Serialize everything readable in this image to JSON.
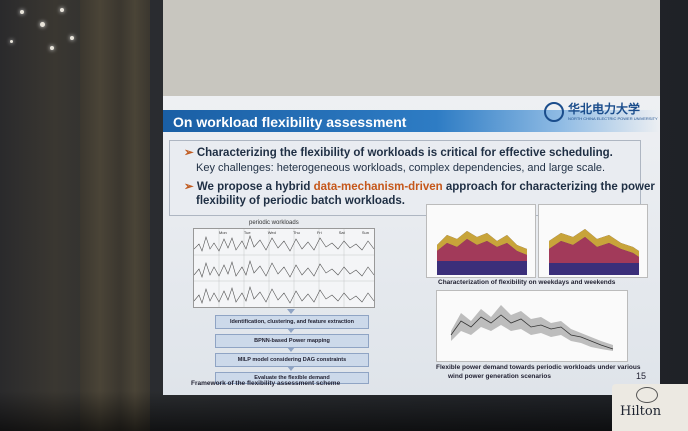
{
  "slide": {
    "title": "On workload flexibility assessment",
    "university_logo_text_cn": "华北电力大学",
    "university_logo_text_en": "NORTH CHINA ELECTRIC POWER UNIVERSITY",
    "bullets": {
      "b1": "Characterizing the flexibility of workloads is critical for effective scheduling.",
      "sub": "Key challenges: heterogeneous workloads, complex dependencies, and large scale.",
      "b2_pre": "We propose a hybrid ",
      "b2_highlight": "data-mechanism-driven",
      "b2_post": " approach for characterizing the power",
      "b3": "flexibility of periodic batch workloads."
    },
    "left_figure": {
      "periodic_label": "periodic workloads",
      "days": [
        "Mon",
        "Tue",
        "Wed",
        "Thu",
        "Fri",
        "Sat",
        "Sun"
      ],
      "steps": [
        "Identification, clustering, and feature extraction",
        "BPNN-based Power mapping",
        "MILP model considering DAG constraints",
        "Evaluate the flexible demand"
      ],
      "caption": "Framework of the flexibility assessment scheme"
    },
    "right_figure": {
      "caption_top": "Characterization of flexibility on weekdays and weekends",
      "caption_bottom_1": "Flexible power demand towards periodic workloads under various",
      "caption_bottom_2": "wind power generation scenarios"
    },
    "page_number": "15"
  },
  "venue": {
    "sign_brand": "Hilton"
  }
}
